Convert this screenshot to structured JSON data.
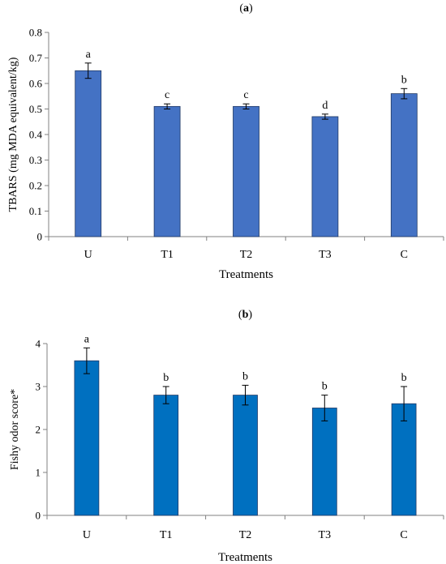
{
  "chart_data": [
    {
      "type": "bar",
      "panel_label": "a",
      "title": "",
      "xlabel": "Treatments",
      "ylabel": "TBARS (mg MDA equivalent/kg)",
      "categories": [
        "U",
        "T1",
        "T2",
        "T3",
        "C"
      ],
      "values": [
        0.65,
        0.51,
        0.51,
        0.47,
        0.56
      ],
      "errors": [
        0.03,
        0.01,
        0.01,
        0.01,
        0.02
      ],
      "letters": [
        "a",
        "c",
        "c",
        "d",
        "b"
      ],
      "ylim": [
        0,
        0.8
      ],
      "yticks": [
        "0",
        "0.1",
        "0.2",
        "0.3",
        "0.4",
        "0.5",
        "0.6",
        "0.7",
        "0.8"
      ],
      "grid": false,
      "bar_color": "#4472C4",
      "bar_stroke": "#1F3864"
    },
    {
      "type": "bar",
      "panel_label": "b",
      "title": "",
      "xlabel": "Treatments",
      "ylabel": "Fishy odor score*",
      "categories": [
        "U",
        "T1",
        "T2",
        "T3",
        "C"
      ],
      "values": [
        3.6,
        2.8,
        2.8,
        2.5,
        2.6
      ],
      "errors": [
        0.3,
        0.2,
        0.23,
        0.3,
        0.4
      ],
      "letters": [
        "a",
        "b",
        "b",
        "b",
        "b"
      ],
      "ylim": [
        0,
        4
      ],
      "yticks": [
        "0",
        "1",
        "2",
        "3",
        "4"
      ],
      "grid": false,
      "bar_color": "#0070C0",
      "bar_stroke": "#1F3864"
    }
  ]
}
